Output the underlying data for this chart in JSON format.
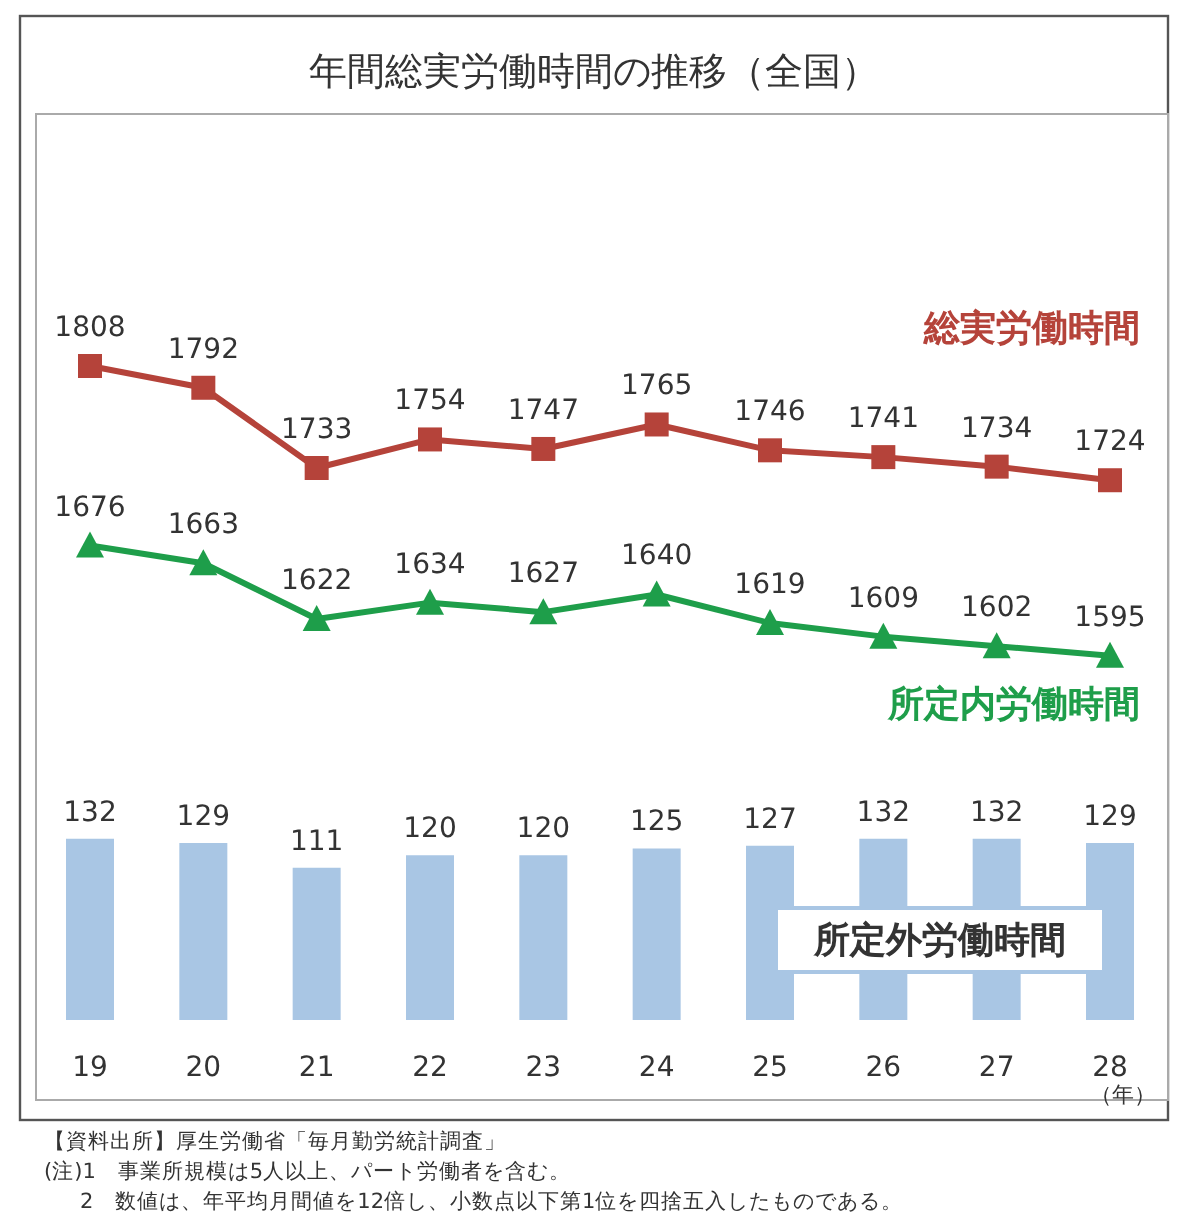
{
  "chart_data": {
    "type": "bar",
    "title": "年間総実労働時間の推移（全国）",
    "xlabel": "（年）",
    "categories": [
      "19",
      "20",
      "21",
      "22",
      "23",
      "24",
      "25",
      "26",
      "27",
      "28"
    ],
    "ylim": [
      0,
      660
    ],
    "series": [
      {
        "name": "総実労働時間",
        "type": "line",
        "axis": "y2",
        "marker": "square",
        "color": "#b5433a",
        "values": [
          1808,
          1792,
          1733,
          1754,
          1747,
          1765,
          1746,
          1741,
          1734,
          1724
        ]
      },
      {
        "name": "所定内労働時間",
        "type": "line",
        "axis": "y2",
        "marker": "triangle",
        "color": "#1e9e4a",
        "values": [
          1676,
          1663,
          1622,
          1634,
          1627,
          1640,
          1619,
          1609,
          1602,
          1595
        ]
      },
      {
        "name": "所定外労働時間",
        "color": "#a9c6e4",
        "values": [
          132,
          129,
          111,
          120,
          120,
          125,
          127,
          132,
          132,
          129
        ]
      }
    ],
    "data_labels": true,
    "annotations": [
      "【資料出所】厚生労働省「毎月勤労統計調査」",
      "(注)1　事業所規模は5人以上、パート労働者を含む。",
      "2　数値は、年平均月間値を12倍し、小数点以下第1位を四捨五入したものである。"
    ]
  }
}
